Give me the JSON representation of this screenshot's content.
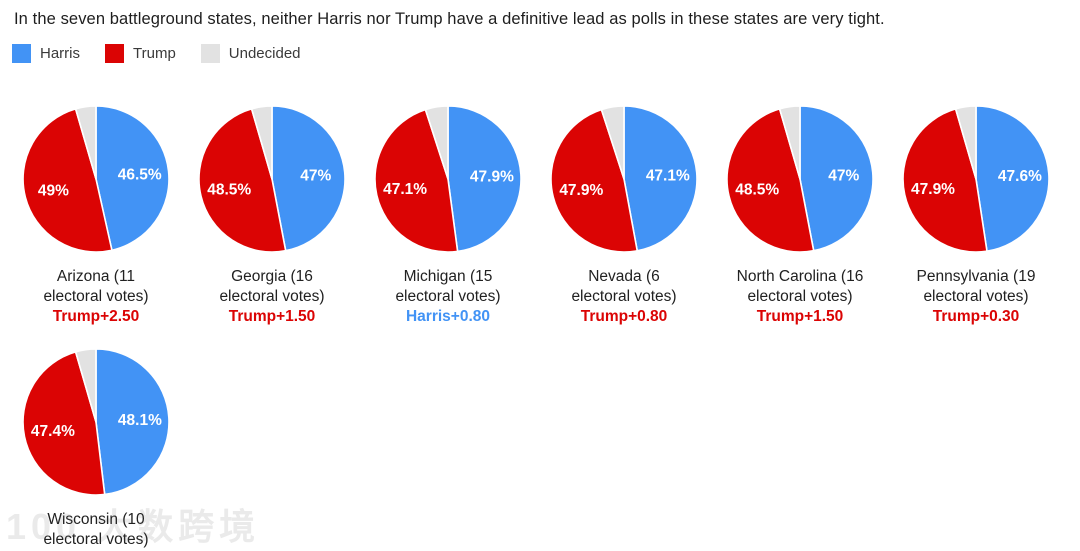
{
  "chart_data": {
    "type": "pie",
    "title": "In the seven battleground states, neither Harris nor Trump have a definitive lead as polls in these states are very tight.",
    "legend_position": "top-left",
    "legend": [
      {
        "key": "harris",
        "name": "Harris",
        "color": "#4293f5"
      },
      {
        "key": "trump",
        "name": "Trump",
        "color": "#db0404"
      },
      {
        "key": "undecided",
        "name": "Undecided",
        "color": "#e2e2e2"
      }
    ],
    "slice_order": [
      "harris",
      "trump",
      "undecided"
    ],
    "label_suffix": "%",
    "states": [
      {
        "name": "Arizona",
        "electoral_votes": 11,
        "harris": 46.5,
        "trump": 49,
        "undecided": 4.5,
        "margin": "Trump+2.50",
        "leader": "trump"
      },
      {
        "name": "Georgia",
        "electoral_votes": 16,
        "harris": 47,
        "trump": 48.5,
        "undecided": 4.5,
        "margin": "Trump+1.50",
        "leader": "trump"
      },
      {
        "name": "Michigan",
        "electoral_votes": 15,
        "harris": 47.9,
        "trump": 47.1,
        "undecided": 5,
        "margin": "Harris+0.80",
        "leader": "harris"
      },
      {
        "name": "Nevada",
        "electoral_votes": 6,
        "harris": 47.1,
        "trump": 47.9,
        "undecided": 5,
        "margin": "Trump+0.80",
        "leader": "trump"
      },
      {
        "name": "North Carolina",
        "electoral_votes": 16,
        "harris": 47,
        "trump": 48.5,
        "undecided": 4.5,
        "margin": "Trump+1.50",
        "leader": "trump"
      },
      {
        "name": "Pennsylvania",
        "electoral_votes": 19,
        "harris": 47.6,
        "trump": 47.9,
        "undecided": 4.5,
        "margin": "Trump+0.30",
        "leader": "trump"
      },
      {
        "name": "Wisconsin",
        "electoral_votes": 10,
        "harris": 48.1,
        "trump": 47.4,
        "undecided": 4.5,
        "margin": "Harris+0.70",
        "leader": "harris"
      }
    ],
    "state_label_line2": "electoral votes)"
  },
  "watermark": "100 大数跨境"
}
